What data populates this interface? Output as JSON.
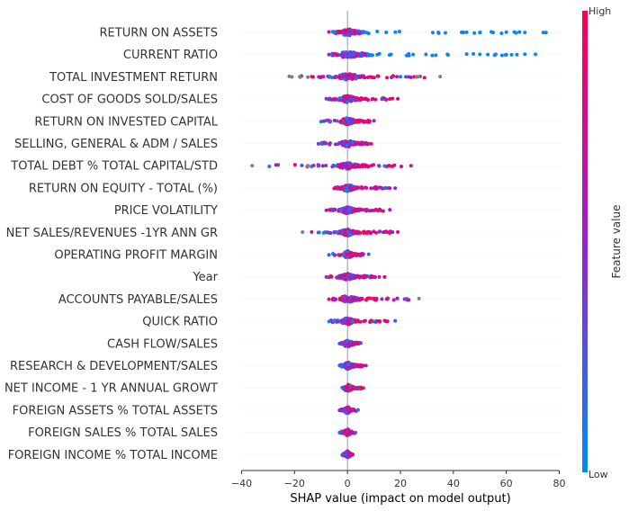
{
  "chart_data": {
    "type": "scatter",
    "subtype": "shap-beeswarm",
    "xlabel": "SHAP value (impact on model output)",
    "xlim": [
      -41,
      81
    ],
    "xticks": [
      -40,
      -20,
      0,
      20,
      40,
      60,
      80
    ],
    "colorbar": {
      "label": "Feature value",
      "high_label": "High",
      "low_label": "Low",
      "low_color": "#008bfb",
      "high_color": "#ff0052"
    },
    "grid": false,
    "features": [
      {
        "name": "RETURN ON ASSETS",
        "min": -7,
        "max": 75,
        "outliers": [
          -7,
          -5,
          45,
          50,
          55,
          60,
          63,
          65,
          67,
          74,
          75
        ],
        "core": [
          -2,
          6
        ]
      },
      {
        "name": "CURRENT RATIO",
        "min": -7,
        "max": 71,
        "outliers": [
          -7,
          -6,
          38,
          45,
          50,
          53,
          56,
          60,
          62,
          64,
          67,
          71
        ],
        "core": [
          -2,
          8
        ]
      },
      {
        "name": "TOTAL INVESTMENT RETURN",
        "min": -22,
        "max": 35,
        "outliers": [
          -22,
          -21,
          -18,
          -15,
          -13,
          20,
          22,
          24,
          26,
          27,
          35
        ],
        "core": [
          -3,
          5
        ]
      },
      {
        "name": "COST OF GOODS SOLD/SALES",
        "min": -8,
        "max": 19,
        "outliers": [
          -8,
          -7,
          13,
          14,
          16,
          17,
          19
        ],
        "core": [
          -2,
          4
        ]
      },
      {
        "name": "RETURN ON INVESTED CAPITAL",
        "min": -10,
        "max": 10,
        "outliers": [
          -10,
          -9,
          7,
          8,
          10
        ],
        "core": [
          -2,
          3
        ]
      },
      {
        "name": "SELLING, GENERAL & ADM / SALES",
        "min": -11,
        "max": 9,
        "outliers": [
          -11,
          -10,
          7,
          9
        ],
        "core": [
          -2,
          3
        ]
      },
      {
        "name": "TOTAL DEBT % TOTAL CAPITAL/STD",
        "min": -36,
        "max": 24,
        "outliers": [
          -36,
          -15,
          -11,
          12,
          14,
          16,
          24
        ],
        "core": [
          -3,
          4
        ]
      },
      {
        "name": "RETURN ON EQUITY - TOTAL (%)",
        "min": -5,
        "max": 18,
        "outliers": [
          -5,
          10,
          12,
          14,
          16,
          18
        ],
        "core": [
          -2,
          3
        ]
      },
      {
        "name": "PRICE VOLATILITY",
        "min": -8,
        "max": 16,
        "outliers": [
          -8,
          10,
          11,
          16
        ],
        "core": [
          -2,
          3
        ]
      },
      {
        "name": "NET SALES/REVENUES -1YR ANN GR",
        "min": -17,
        "max": 19,
        "outliers": [
          -17,
          -11,
          -9,
          12,
          14,
          17,
          19
        ],
        "core": [
          -3,
          3
        ]
      },
      {
        "name": "OPERATING PROFIT MARGIN",
        "min": -7,
        "max": 8,
        "outliers": [
          -7,
          -5,
          6,
          8
        ],
        "core": [
          -1,
          2
        ]
      },
      {
        "name": "Year",
        "min": -8,
        "max": 14,
        "outliers": [
          -8,
          -6,
          8,
          10,
          14
        ],
        "core": [
          -3,
          3
        ]
      },
      {
        "name": "ACCOUNTS PAYABLE/SALES",
        "min": -7,
        "max": 27,
        "outliers": [
          -7,
          -5,
          11,
          13,
          22,
          27
        ],
        "core": [
          -2,
          4
        ]
      },
      {
        "name": "QUICK RATIO",
        "min": -7,
        "max": 18,
        "outliers": [
          -7,
          -5,
          10,
          12,
          18
        ],
        "core": [
          -2,
          3
        ]
      },
      {
        "name": "CASH FLOW/SALES",
        "min": -3,
        "max": 5,
        "outliers": [
          -3,
          4,
          5
        ],
        "core": [
          -1,
          2
        ]
      },
      {
        "name": "RESEARCH & DEVELOPMENT/SALES",
        "min": -3,
        "max": 7,
        "outliers": [
          -3,
          5,
          7
        ],
        "core": [
          -1,
          3
        ]
      },
      {
        "name": "NET INCOME - 1 YR ANNUAL GROWT",
        "min": -2,
        "max": 6,
        "outliers": [
          -2,
          4,
          6
        ],
        "core": [
          -1,
          2
        ]
      },
      {
        "name": "FOREIGN ASSETS % TOTAL ASSETS",
        "min": -3,
        "max": 4,
        "outliers": [
          -3,
          4
        ],
        "core": [
          -1,
          1
        ]
      },
      {
        "name": "FOREIGN SALES % TOTAL SALES",
        "min": -3,
        "max": 3,
        "outliers": [
          -3,
          3
        ],
        "core": [
          -1,
          1
        ]
      },
      {
        "name": "FOREIGN INCOME % TOTAL INCOME",
        "min": -2,
        "max": 2,
        "outliers": [
          -2,
          2
        ],
        "core": [
          -1,
          1
        ]
      }
    ]
  }
}
